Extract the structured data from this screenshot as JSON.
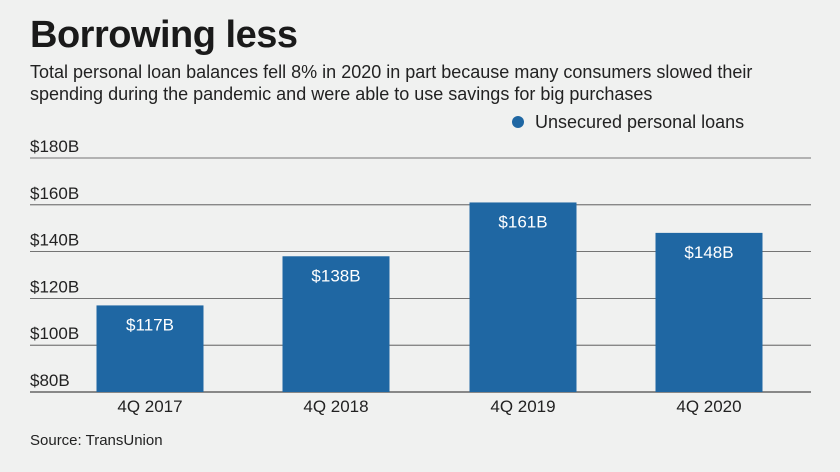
{
  "header": {
    "title": "Borrowing less",
    "subtitle": "Total personal loan balances fell 8% in 2020 in part because many consumers slowed their spending during the pandemic and were able to use savings for big purchases"
  },
  "footer": {
    "source": "Source: TransUnion"
  },
  "colors": {
    "bar": "#1f67a3",
    "background": "#f0f1f0",
    "grid": "#4a4a4a"
  },
  "chart_data": {
    "type": "bar",
    "title": "Borrowing less",
    "categories": [
      "4Q 2017",
      "4Q 2018",
      "4Q 2019",
      "4Q 2020"
    ],
    "series": [
      {
        "name": "Unsecured personal loans",
        "values": [
          117,
          138,
          161,
          148
        ],
        "labels": [
          "$117B",
          "$138B",
          "$161B",
          "$148B"
        ]
      }
    ],
    "yticks": [
      80,
      100,
      120,
      140,
      160,
      180
    ],
    "ytick_labels": [
      "$80B",
      "$100B",
      "$120B",
      "$140B",
      "$160B",
      "$180B"
    ],
    "ylim": [
      80,
      180
    ],
    "xlabel": "",
    "ylabel": "",
    "grid": true,
    "legend_position": "top-right"
  }
}
